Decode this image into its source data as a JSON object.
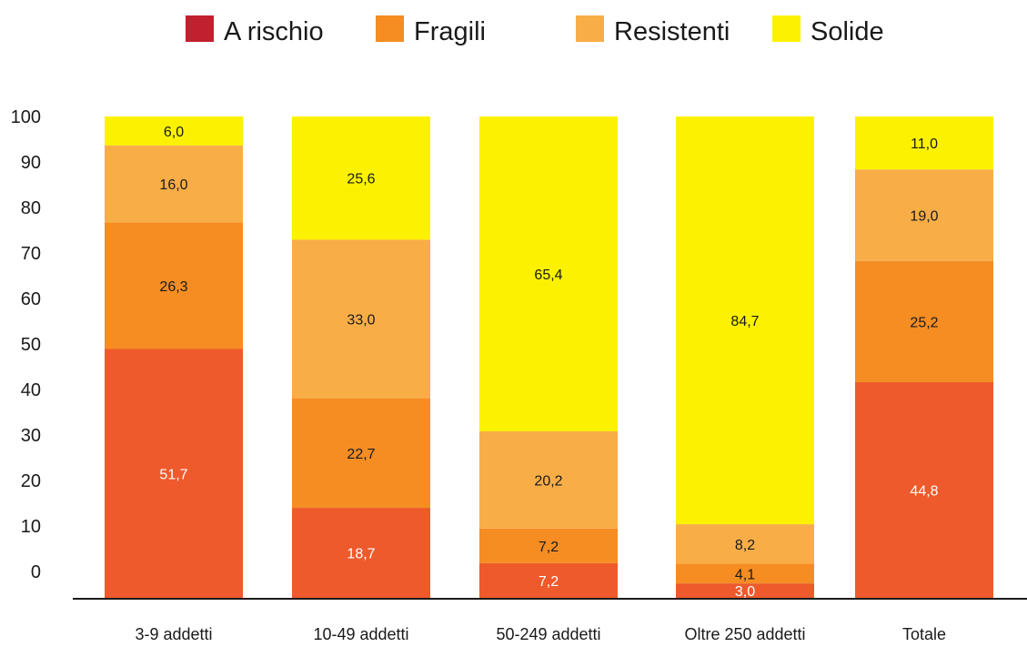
{
  "colors": {
    "a_rischio_legend": "#c1202e",
    "a_rischio_bar": "#ee5a2b",
    "fragili": "#f58d23",
    "resistenti": "#f9ad47",
    "solide": "#fcf200",
    "axis": "#1a1a1a"
  },
  "chart_data": {
    "type": "bar",
    "stacked": true,
    "title": "",
    "xlabel": "",
    "ylabel": "",
    "ylim": [
      0,
      100
    ],
    "y_ticks": [
      "0",
      "10",
      "20",
      "30",
      "40",
      "50",
      "60",
      "70",
      "80",
      "90",
      "100"
    ],
    "grid": false,
    "legend_position": "top",
    "categories": [
      "3-9 addetti",
      "10-49 addetti",
      "50-249 addetti",
      "Oltre 250 addetti",
      "Totale"
    ],
    "series": [
      {
        "name": "A rischio",
        "values": [
          51.7,
          18.7,
          7.2,
          3.0,
          44.8
        ],
        "labels": [
          "51,7",
          "18,7",
          "7,2",
          "3,0",
          "44,8"
        ]
      },
      {
        "name": "Fragili",
        "values": [
          26.3,
          22.7,
          7.2,
          4.1,
          25.2
        ],
        "labels": [
          "26,3",
          "22,7",
          "7,2",
          "4,1",
          "25,2"
        ]
      },
      {
        "name": "Resistenti",
        "values": [
          16.0,
          33.0,
          20.2,
          8.2,
          19.0
        ],
        "labels": [
          "16,0",
          "33,0",
          "20,2",
          "8,2",
          "19,0"
        ]
      },
      {
        "name": "Solide",
        "values": [
          6.0,
          25.6,
          65.4,
          84.7,
          11.0
        ],
        "labels": [
          "6,0",
          "25,6",
          "65,4",
          "84,7",
          "11,0"
        ]
      }
    ]
  }
}
